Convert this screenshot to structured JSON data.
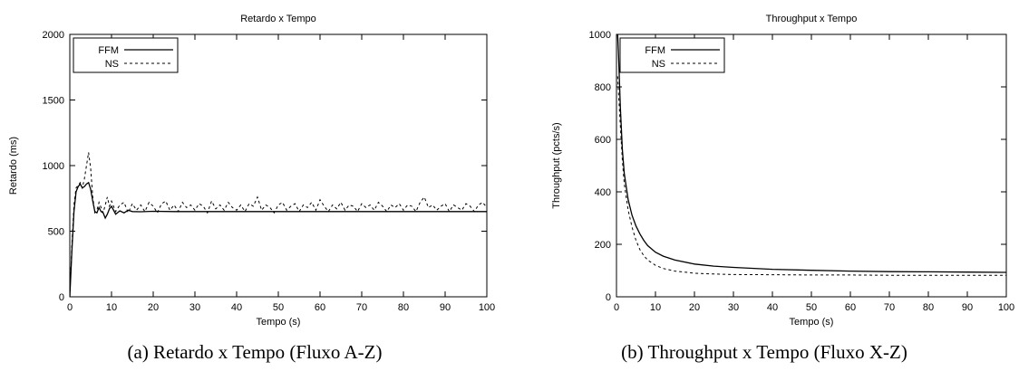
{
  "chart_data": [
    {
      "type": "line",
      "title": "Retardo x Tempo",
      "xlabel": "Tempo (s)",
      "ylabel": "Retardo (ms)",
      "xlim": [
        0,
        100
      ],
      "ylim": [
        0,
        2000
      ],
      "xticks": [
        0,
        10,
        20,
        30,
        40,
        50,
        60,
        70,
        80,
        90,
        100
      ],
      "yticks": [
        0,
        500,
        1000,
        1500,
        2000
      ],
      "legend_position": "top-left",
      "grid": false,
      "caption": "(a)  Retardo x Tempo (Fluxo A-Z)",
      "series": [
        {
          "name": "FFM",
          "style": "solid",
          "x": [
            0,
            0.5,
            1,
            1.5,
            2,
            2.5,
            3,
            3.5,
            4,
            4.5,
            5,
            5.5,
            6,
            6.5,
            7,
            7.5,
            8,
            8.5,
            9,
            9.5,
            10,
            11,
            12,
            13,
            14,
            15,
            17,
            20,
            25,
            30,
            40,
            50,
            60,
            70,
            80,
            90,
            100
          ],
          "y": [
            0,
            350,
            650,
            800,
            840,
            860,
            830,
            840,
            860,
            870,
            820,
            730,
            650,
            640,
            680,
            650,
            640,
            600,
            630,
            670,
            690,
            630,
            655,
            640,
            660,
            650,
            648,
            652,
            650,
            650,
            650,
            650,
            650,
            650,
            650,
            650,
            650
          ]
        },
        {
          "name": "NS",
          "style": "dashed",
          "x": [
            0,
            0.5,
            1,
            1.5,
            2,
            2.5,
            3,
            3.5,
            4,
            4.5,
            5,
            5.5,
            6,
            6.5,
            7,
            7.5,
            8,
            8.5,
            9,
            9.5,
            10,
            11,
            12,
            13,
            14,
            15,
            16,
            17,
            18,
            19,
            20,
            21,
            22,
            23,
            24,
            25,
            26,
            27,
            28,
            29,
            30,
            31,
            32,
            33,
            34,
            35,
            36,
            37,
            38,
            39,
            40,
            41,
            42,
            43,
            44,
            45,
            46,
            47,
            48,
            49,
            50,
            51,
            52,
            53,
            54,
            55,
            56,
            57,
            58,
            59,
            60,
            61,
            62,
            63,
            64,
            65,
            66,
            67,
            68,
            69,
            70,
            71,
            72,
            73,
            74,
            75,
            76,
            77,
            78,
            79,
            80,
            81,
            82,
            83,
            84,
            85,
            86,
            87,
            88,
            89,
            90,
            91,
            92,
            93,
            94,
            95,
            96,
            97,
            98,
            99,
            100
          ],
          "y": [
            0,
            400,
            700,
            830,
            850,
            870,
            830,
            900,
            1000,
            1100,
            980,
            760,
            640,
            660,
            720,
            680,
            640,
            700,
            760,
            690,
            730,
            650,
            700,
            720,
            640,
            710,
            660,
            700,
            650,
            720,
            690,
            640,
            710,
            730,
            660,
            700,
            650,
            720,
            680,
            700,
            660,
            710,
            690,
            640,
            730,
            670,
            700,
            660,
            720,
            680,
            660,
            700,
            650,
            710,
            690,
            760,
            660,
            700,
            680,
            640,
            700,
            720,
            660,
            690,
            710,
            650,
            700,
            680,
            720,
            660,
            740,
            690,
            650,
            700,
            670,
            720,
            660,
            700,
            690,
            650,
            710,
            680,
            700,
            660,
            720,
            690,
            650,
            700,
            680,
            710,
            660,
            700,
            690,
            650,
            720,
            760,
            680,
            700,
            660,
            690,
            710,
            650,
            700,
            680,
            660,
            710,
            690,
            650,
            700,
            720,
            680
          ]
        }
      ]
    },
    {
      "type": "line",
      "title": "Throughput x Tempo",
      "xlabel": "Tempo (s)",
      "ylabel": "Throughput (pcts/s)",
      "xlim": [
        0,
        100
      ],
      "ylim": [
        0,
        1000
      ],
      "xticks": [
        0,
        10,
        20,
        30,
        40,
        50,
        60,
        70,
        80,
        90,
        100
      ],
      "yticks": [
        0,
        200,
        400,
        600,
        800,
        1000
      ],
      "legend_position": "top-left",
      "grid": false,
      "caption": "(b)  Throughput x Tempo (Fluxo X-Z)",
      "series": [
        {
          "name": "FFM",
          "style": "solid",
          "x": [
            0.3,
            0.5,
            1,
            1.5,
            2,
            3,
            4,
            5,
            6,
            7,
            8,
            10,
            12,
            15,
            20,
            25,
            30,
            40,
            50,
            60,
            70,
            80,
            90,
            100
          ],
          "y": [
            1000,
            930,
            720,
            560,
            470,
            370,
            310,
            270,
            240,
            215,
            195,
            170,
            155,
            140,
            125,
            117,
            112,
            105,
            101,
            98,
            96,
            95,
            94,
            93
          ]
        },
        {
          "name": "NS",
          "style": "dashed",
          "x": [
            0.3,
            0.5,
            1,
            1.5,
            2,
            3,
            4,
            5,
            6,
            7,
            8,
            10,
            12,
            15,
            20,
            25,
            30,
            40,
            50,
            60,
            70,
            80,
            90,
            100
          ],
          "y": [
            840,
            780,
            650,
            520,
            430,
            330,
            265,
            215,
            180,
            157,
            140,
            120,
            108,
            98,
            90,
            87,
            85,
            84,
            83,
            83,
            82,
            82,
            82,
            82
          ]
        }
      ]
    }
  ]
}
